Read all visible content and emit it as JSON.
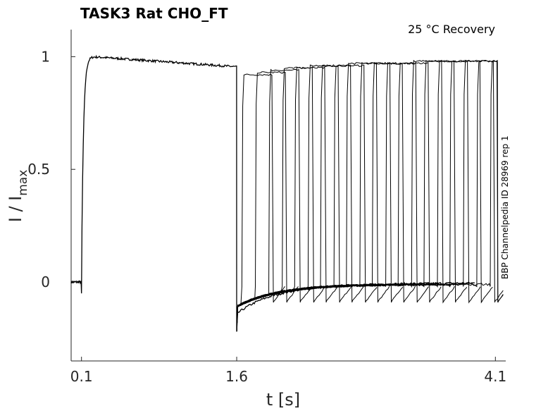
{
  "chart_data": {
    "type": "line",
    "title": "TASK3  Rat  CHO_FT",
    "annotation": "25 °C  Recovery",
    "side_label": "BBP Channelpedia ID 28969 rep 1",
    "xlabel": "t [s]",
    "ylabel_main": "I / I",
    "ylabel_sub": "max",
    "xlim": [
      0.0,
      4.2
    ],
    "ylim": [
      -0.35,
      1.12
    ],
    "xticks": [
      {
        "value": 0.1,
        "label": "0.1"
      },
      {
        "value": 1.6,
        "label": "1.6"
      },
      {
        "value": 4.1,
        "label": "4.1"
      }
    ],
    "yticks": [
      {
        "value": 0,
        "label": "0"
      },
      {
        "value": 0.5,
        "label": "0.5"
      },
      {
        "value": 1,
        "label": "1"
      }
    ],
    "protocol": {
      "baseline_level": 0.0,
      "conditioning_onset": 0.1,
      "conditioning_offset": 1.6,
      "peak_level": 1.0,
      "level_at_offset": 0.955,
      "post_offset_dip": -0.22,
      "recovery_baseline": 0.0,
      "test_pulse_peaks": [
        {
          "onset": 1.65,
          "peak": 0.92
        },
        {
          "onset": 1.78,
          "peak": 0.93
        },
        {
          "onset": 1.91,
          "peak": 0.94
        },
        {
          "onset": 2.04,
          "peak": 0.95
        },
        {
          "onset": 2.16,
          "peak": 0.95
        },
        {
          "onset": 2.29,
          "peak": 0.96
        },
        {
          "onset": 2.41,
          "peak": 0.96
        },
        {
          "onset": 2.54,
          "peak": 0.96
        },
        {
          "onset": 2.66,
          "peak": 0.97
        },
        {
          "onset": 2.79,
          "peak": 0.97
        },
        {
          "onset": 2.91,
          "peak": 0.97
        },
        {
          "onset": 3.04,
          "peak": 0.97
        },
        {
          "onset": 3.16,
          "peak": 0.97
        },
        {
          "onset": 3.29,
          "peak": 0.98
        },
        {
          "onset": 3.41,
          "peak": 0.98
        },
        {
          "onset": 3.54,
          "peak": 0.98
        },
        {
          "onset": 3.66,
          "peak": 0.98
        },
        {
          "onset": 3.79,
          "peak": 0.98
        },
        {
          "onset": 3.92,
          "peak": 0.98
        },
        {
          "onset": 4.05,
          "peak": 0.98
        }
      ]
    }
  }
}
